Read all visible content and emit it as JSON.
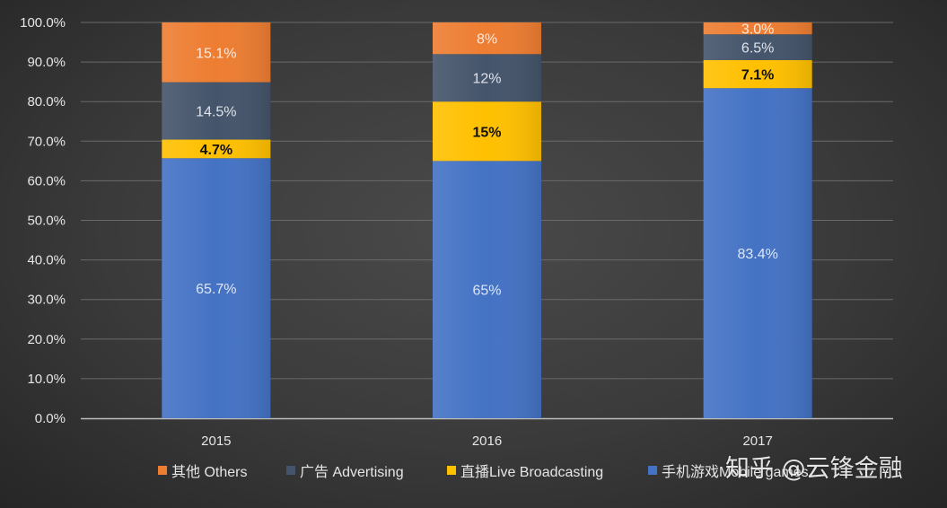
{
  "chart_data": {
    "type": "bar",
    "stacked": true,
    "categories": [
      "2015",
      "2016",
      "2017"
    ],
    "ylim": [
      0,
      100
    ],
    "y_ticks": [
      "0.0%",
      "10.0%",
      "20.0%",
      "30.0%",
      "40.0%",
      "50.0%",
      "60.0%",
      "70.0%",
      "80.0%",
      "90.0%",
      "100.0%"
    ],
    "grid": true,
    "legend_position": "bottom",
    "series": [
      {
        "name": "手机游戏Mobile games",
        "color": "#4472c4",
        "values": [
          65.7,
          65,
          83.4
        ],
        "labels": [
          "65.7%",
          "65%",
          "83.4%"
        ],
        "label_color": "#dde6f5",
        "bold": false
      },
      {
        "name": "直播Live Broadcasting",
        "color": "#ffc000",
        "values": [
          4.7,
          15,
          7.1
        ],
        "labels": [
          "4.7%",
          "15%",
          "7.1%"
        ],
        "label_color": "#111111",
        "bold": true
      },
      {
        "name": "广告 Advertising",
        "color": "#44546a",
        "values": [
          14.5,
          12,
          6.5
        ],
        "labels": [
          "14.5%",
          "12%",
          "6.5%"
        ],
        "label_color": "#dfe3ea",
        "bold": false
      },
      {
        "name": "其他 Others",
        "color": "#ed7d31",
        "values": [
          15.1,
          8,
          3.0
        ],
        "labels": [
          "15.1%",
          "8%",
          "3.0%"
        ],
        "label_color": "#fde9dc",
        "bold": false
      }
    ],
    "legend_order": [
      3,
      2,
      1,
      0
    ]
  },
  "watermark": "知乎 @云锋金融"
}
